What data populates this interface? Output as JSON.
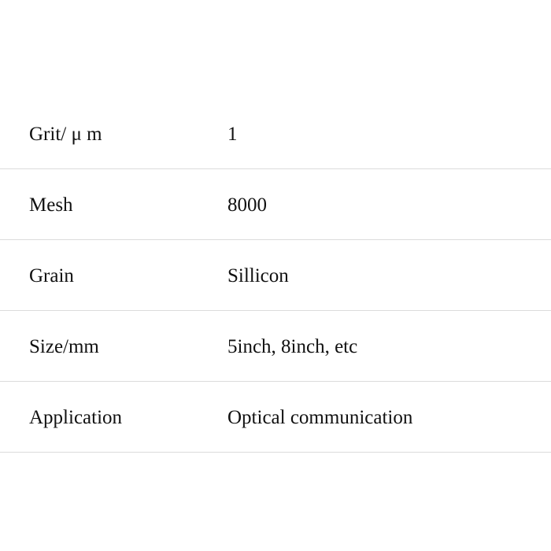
{
  "specs": [
    {
      "label": "Grit/ μ m",
      "value": "1"
    },
    {
      "label": "Mesh",
      "value": "8000"
    },
    {
      "label": "Grain",
      "value": "Sillicon"
    },
    {
      "label": "Size/mm",
      "value": "5inch, 8inch, etc"
    },
    {
      "label": "Application",
      "value": "Optical communication"
    }
  ]
}
